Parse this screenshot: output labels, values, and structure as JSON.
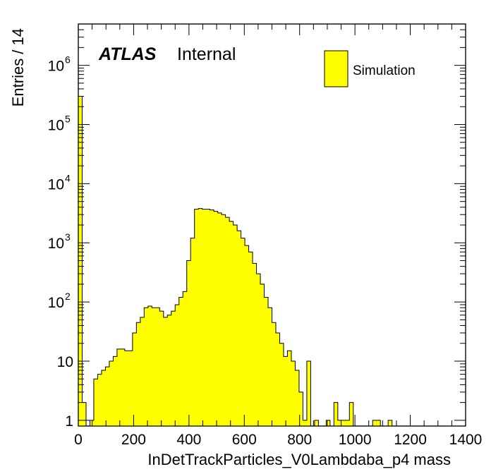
{
  "chart_data": {
    "type": "bar",
    "xlabel": "InDetTrackParticles_V0Lambdaba_p4 mass",
    "ylabel": "Entries / 14",
    "xlim": [
      0,
      1400
    ],
    "ylim": [
      0.8,
      5000000
    ],
    "yscale": "log",
    "bin_width": 14,
    "x_ticks": [
      "0",
      "200",
      "400",
      "600",
      "800",
      "1000",
      "1200",
      "1400"
    ],
    "y_ticks": [
      {
        "value": 1,
        "base": "1",
        "exp": ""
      },
      {
        "value": 10,
        "base": "10",
        "exp": ""
      },
      {
        "value": 100,
        "base": "10",
        "exp": "2"
      },
      {
        "value": 1000,
        "base": "10",
        "exp": "3"
      },
      {
        "value": 10000,
        "base": "10",
        "exp": "4"
      },
      {
        "value": 100000,
        "base": "10",
        "exp": "5"
      },
      {
        "value": 1000000,
        "base": "10",
        "exp": "6"
      }
    ],
    "annotation": {
      "atlas": "ATLAS",
      "status": "Internal"
    },
    "series": [
      {
        "name": "Simulation",
        "color": "#ffff00",
        "edge_color": "#000000",
        "bin_edges_start": 0,
        "values": [
          300000,
          2,
          0,
          1,
          5,
          6,
          7,
          8,
          10,
          12,
          16,
          16,
          15,
          15,
          30,
          45,
          55,
          80,
          85,
          80,
          80,
          70,
          55,
          60,
          70,
          90,
          120,
          150,
          500,
          1200,
          3700,
          3800,
          3700,
          3700,
          3600,
          3400,
          3200,
          3000,
          2700,
          2300,
          2000,
          1600,
          1200,
          900,
          700,
          450,
          300,
          200,
          120,
          80,
          45,
          30,
          20,
          12,
          15,
          10,
          7,
          3,
          1,
          10,
          0,
          1,
          0,
          0,
          1,
          0,
          2,
          1,
          1,
          1,
          2,
          0,
          0,
          0,
          0,
          0,
          1,
          1,
          0,
          0,
          1,
          0,
          0,
          0,
          0,
          0,
          0,
          0,
          0,
          0,
          0,
          0,
          0,
          0,
          0,
          0,
          0,
          0,
          0,
          0
        ]
      }
    ]
  }
}
